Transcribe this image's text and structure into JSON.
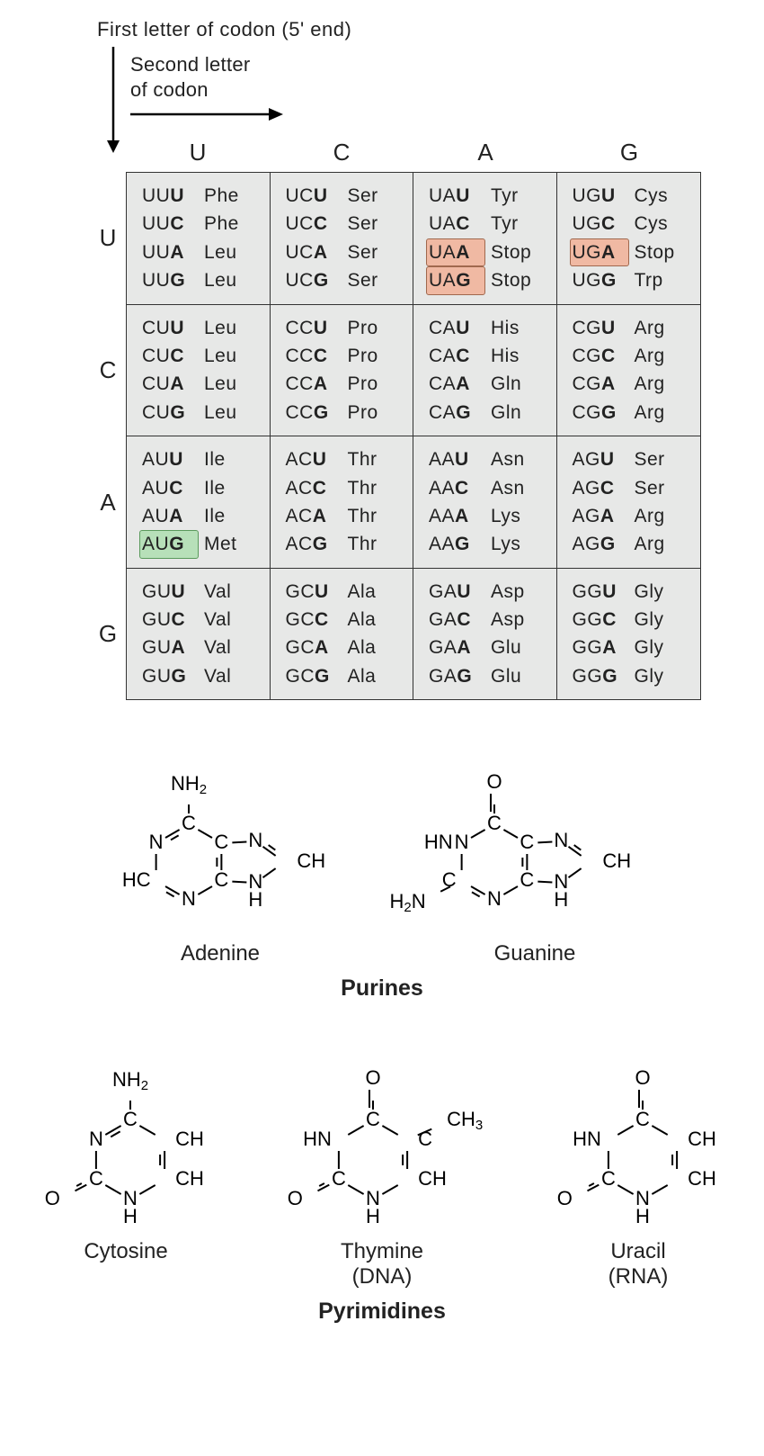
{
  "header": {
    "first_label": "First letter of codon (5' end)",
    "second_label_l1": "Second letter",
    "second_label_l2": "of codon"
  },
  "table": {
    "bases": [
      "U",
      "C",
      "A",
      "G"
    ],
    "col_headers": [
      "U",
      "C",
      "A",
      "G"
    ],
    "row_headers": [
      "U",
      "C",
      "A",
      "G"
    ],
    "bg_color": "#e7e8e7",
    "border_color": "#333333",
    "font_size": 21,
    "highlight_stop": {
      "bg": "#f0b9a3",
      "border": "#a0684e"
    },
    "highlight_start": {
      "bg": "#b7e0b9",
      "border": "#5a9a5c"
    },
    "rows": [
      [
        [
          {
            "c": "UUU",
            "a": "Phe"
          },
          {
            "c": "UUC",
            "a": "Phe"
          },
          {
            "c": "UUA",
            "a": "Leu"
          },
          {
            "c": "UUG",
            "a": "Leu"
          }
        ],
        [
          {
            "c": "UCU",
            "a": "Ser"
          },
          {
            "c": "UCC",
            "a": "Ser"
          },
          {
            "c": "UCA",
            "a": "Ser"
          },
          {
            "c": "UCG",
            "a": "Ser"
          }
        ],
        [
          {
            "c": "UAU",
            "a": "Tyr"
          },
          {
            "c": "UAC",
            "a": "Tyr"
          },
          {
            "c": "UAA",
            "a": "Stop",
            "hl": "stop"
          },
          {
            "c": "UAG",
            "a": "Stop",
            "hl": "stop"
          }
        ],
        [
          {
            "c": "UGU",
            "a": "Cys"
          },
          {
            "c": "UGC",
            "a": "Cys"
          },
          {
            "c": "UGA",
            "a": "Stop",
            "hl": "stop"
          },
          {
            "c": "UGG",
            "a": "Trp"
          }
        ]
      ],
      [
        [
          {
            "c": "CUU",
            "a": "Leu"
          },
          {
            "c": "CUC",
            "a": "Leu"
          },
          {
            "c": "CUA",
            "a": "Leu"
          },
          {
            "c": "CUG",
            "a": "Leu"
          }
        ],
        [
          {
            "c": "CCU",
            "a": "Pro"
          },
          {
            "c": "CCC",
            "a": "Pro"
          },
          {
            "c": "CCA",
            "a": "Pro"
          },
          {
            "c": "CCG",
            "a": "Pro"
          }
        ],
        [
          {
            "c": "CAU",
            "a": "His"
          },
          {
            "c": "CAC",
            "a": "His"
          },
          {
            "c": "CAA",
            "a": "Gln"
          },
          {
            "c": "CAG",
            "a": "Gln"
          }
        ],
        [
          {
            "c": "CGU",
            "a": "Arg"
          },
          {
            "c": "CGC",
            "a": "Arg"
          },
          {
            "c": "CGA",
            "a": "Arg"
          },
          {
            "c": "CGG",
            "a": "Arg"
          }
        ]
      ],
      [
        [
          {
            "c": "AUU",
            "a": "Ile"
          },
          {
            "c": "AUC",
            "a": "Ile"
          },
          {
            "c": "AUA",
            "a": "Ile"
          },
          {
            "c": "AUG",
            "a": "Met",
            "hl": "start"
          }
        ],
        [
          {
            "c": "ACU",
            "a": "Thr"
          },
          {
            "c": "ACC",
            "a": "Thr"
          },
          {
            "c": "ACA",
            "a": "Thr"
          },
          {
            "c": "ACG",
            "a": "Thr"
          }
        ],
        [
          {
            "c": "AAU",
            "a": "Asn"
          },
          {
            "c": "AAC",
            "a": "Asn"
          },
          {
            "c": "AAA",
            "a": "Lys"
          },
          {
            "c": "AAG",
            "a": "Lys"
          }
        ],
        [
          {
            "c": "AGU",
            "a": "Ser"
          },
          {
            "c": "AGC",
            "a": "Ser"
          },
          {
            "c": "AGA",
            "a": "Arg"
          },
          {
            "c": "AGG",
            "a": "Arg"
          }
        ]
      ],
      [
        [
          {
            "c": "GUU",
            "a": "Val"
          },
          {
            "c": "GUC",
            "a": "Val"
          },
          {
            "c": "GUA",
            "a": "Val"
          },
          {
            "c": "GUG",
            "a": "Val"
          }
        ],
        [
          {
            "c": "GCU",
            "a": "Ala"
          },
          {
            "c": "GCC",
            "a": "Ala"
          },
          {
            "c": "GCA",
            "a": "Ala"
          },
          {
            "c": "GCG",
            "a": "Ala"
          }
        ],
        [
          {
            "c": "GAU",
            "a": "Asp"
          },
          {
            "c": "GAC",
            "a": "Asp"
          },
          {
            "c": "GAA",
            "a": "Glu"
          },
          {
            "c": "GAG",
            "a": "Glu"
          }
        ],
        [
          {
            "c": "GGU",
            "a": "Gly"
          },
          {
            "c": "GGC",
            "a": "Gly"
          },
          {
            "c": "GGA",
            "a": "Gly"
          },
          {
            "c": "GGG",
            "a": "Gly"
          }
        ]
      ]
    ]
  },
  "molecules": {
    "purines_title": "Purines",
    "pyrimidines_title": "Pyrimidines",
    "line_color": "#000000",
    "line_width": 2,
    "atom_font_size": 22,
    "name_font_size": 24,
    "purines": [
      {
        "name": "Adenine",
        "top_group": "NH2"
      },
      {
        "name": "Guanine",
        "top_group": "O",
        "left_group": "H2N"
      }
    ],
    "pyrimidines": [
      {
        "name": "Cytosine",
        "top_group": "NH2",
        "sub": ""
      },
      {
        "name": "Thymine",
        "top_group": "O",
        "sub": "(DNA)",
        "ch3": true
      },
      {
        "name": "Uracil",
        "top_group": "O",
        "sub": "(RNA)"
      }
    ]
  }
}
